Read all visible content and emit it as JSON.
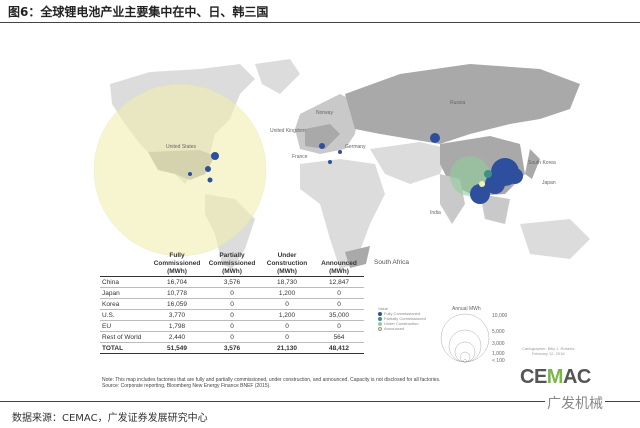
{
  "title": "图6：全球锂电池产业主要集中在中、日、韩三国",
  "map": {
    "country_labels": [
      "United States",
      "Norway",
      "United Kingdom",
      "France",
      "Germany",
      "Russia",
      "South Korea",
      "Japan",
      "India",
      "South Africa"
    ],
    "colors": {
      "fully_commissioned": "#2e4f9e",
      "partially_commissioned": "#3d8f8a",
      "under_construction": "#8fcf9b",
      "announced": "#f2efb0",
      "land": "#a9a9a9",
      "land_light": "#dcdcdc"
    }
  },
  "table": {
    "headers": [
      "",
      "Fully Commissioned (MWh)",
      "Partially Commissioned (MWh)",
      "Under Construction (MWh)",
      "Announced (MWh)"
    ],
    "rows": [
      [
        "China",
        "16,704",
        "3,576",
        "18,730",
        "12,847"
      ],
      [
        "Japan",
        "10,778",
        "0",
        "1,200",
        "0"
      ],
      [
        "Korea",
        "16,059",
        "0",
        "0",
        "0"
      ],
      [
        "U.S.",
        "3,770",
        "0",
        "1,200",
        "35,000"
      ],
      [
        "EU",
        "1,798",
        "0",
        "0",
        "0"
      ],
      [
        "Rest of World",
        "2,440",
        "0",
        "0",
        "564"
      ]
    ],
    "total": [
      "TOTAL",
      "51,549",
      "3,576",
      "21,130",
      "48,412"
    ]
  },
  "note": "Note: This map includes factories that are fully and partially commissioned, under construction, and announced. Capacity is not disclosed for all factories.",
  "source_line": "Source: Corporate reporting, Bloomberg New Energy Finance BNEF (2015).",
  "legend": {
    "title": "Value",
    "items": [
      "Fully Commissioned",
      "Partially Commissioned",
      "Under Construction",
      "Announced"
    ],
    "size_title": "Annual MWh",
    "sizes": [
      "10,000",
      "5,000",
      "3,000",
      "1,000",
      "< 100"
    ]
  },
  "cartographer": "Cartographer: Billy J. Roberts",
  "date": "February 12, 2016",
  "logo": {
    "text_a": "CE",
    "text_b": "M",
    "text_c": "AC"
  },
  "watermark": "广发机械",
  "data_source": "数据来源：CEMAC，广发证券发展研究中心"
}
